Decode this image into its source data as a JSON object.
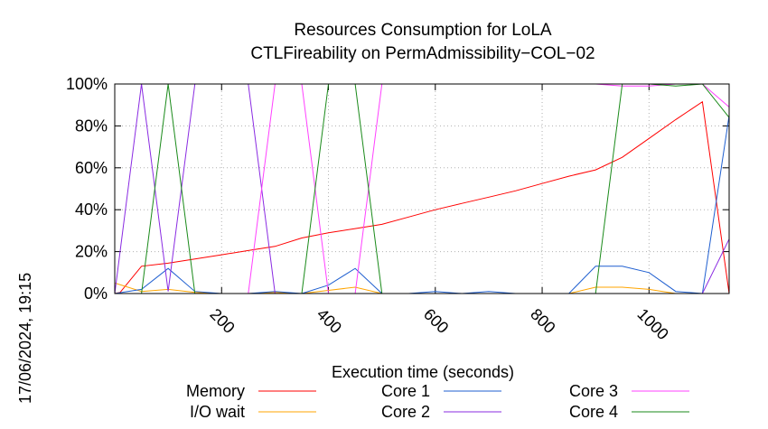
{
  "chart_data": {
    "type": "line",
    "title": "Resources Consumption for LoLA",
    "subtitle": "CTLFireability on PermAdmissibility−COL−02",
    "xlabel": "Execution time (seconds)",
    "ylabel": "",
    "side_label": "17/06/2024, 19:15",
    "xlim": [
      0,
      1150
    ],
    "ylim": [
      0,
      100
    ],
    "x_ticks": [
      200,
      400,
      600,
      800,
      1000
    ],
    "x_tick_labels": [
      "200",
      "400",
      "600",
      "800",
      "1000"
    ],
    "y_ticks": [
      0,
      20,
      40,
      60,
      80,
      100
    ],
    "y_tick_labels": [
      "0%",
      "20%",
      "40%",
      "60%",
      "80%",
      "100%"
    ],
    "grid": true,
    "legend_position": "bottom",
    "series": [
      {
        "name": "Memory",
        "color": "#ff0000",
        "x": [
          0,
          10,
          50,
          100,
          150,
          200,
          250,
          300,
          350,
          400,
          450,
          500,
          550,
          600,
          650,
          700,
          750,
          800,
          850,
          900,
          950,
          1000,
          1050,
          1100,
          1150
        ],
        "values": [
          0,
          0.5,
          13,
          14.5,
          16.5,
          18.5,
          20.5,
          22.5,
          26.5,
          29,
          31,
          33,
          36.5,
          40,
          43,
          46,
          49,
          52.5,
          56,
          59,
          65,
          74,
          83,
          91.5,
          0
        ]
      },
      {
        "name": "I/O wait",
        "color": "#ffa500",
        "x": [
          0,
          50,
          100,
          150,
          200,
          250,
          300,
          350,
          400,
          450,
          500,
          550,
          600,
          650,
          700,
          750,
          800,
          850,
          900,
          950,
          1000,
          1050,
          1100,
          1150
        ],
        "values": [
          5,
          1,
          2,
          0.5,
          0,
          0,
          0.5,
          0,
          1.5,
          3,
          0,
          0,
          0,
          0,
          0,
          0,
          0,
          0,
          3,
          3,
          2,
          0,
          0,
          0
        ]
      },
      {
        "name": "Core 1",
        "color": "#1f5fd0",
        "x": [
          0,
          50,
          100,
          150,
          200,
          250,
          300,
          350,
          400,
          450,
          500,
          550,
          600,
          650,
          700,
          750,
          800,
          850,
          900,
          950,
          1000,
          1050,
          1100,
          1150
        ],
        "values": [
          0,
          2,
          12,
          1,
          0,
          0,
          1,
          0,
          4,
          12,
          0,
          0,
          1,
          0,
          1,
          0,
          0,
          0,
          13,
          13,
          10,
          1,
          0,
          85
        ]
      },
      {
        "name": "Core 2",
        "color": "#8a2be2",
        "x": [
          0,
          50,
          100,
          150,
          200,
          250,
          300,
          350,
          400,
          450,
          500,
          550,
          600,
          650,
          700,
          750,
          800,
          850,
          900,
          950,
          1000,
          1050,
          1100,
          1150
        ],
        "values": [
          0,
          100,
          1,
          100,
          100,
          100,
          0,
          0,
          0,
          0,
          0,
          0,
          0,
          0,
          0,
          0,
          0,
          0,
          0,
          0,
          0,
          0,
          0,
          26
        ]
      },
      {
        "name": "Core 3",
        "color": "#ff40ff",
        "x": [
          0,
          50,
          100,
          150,
          200,
          250,
          300,
          350,
          400,
          450,
          500,
          550,
          600,
          650,
          700,
          750,
          800,
          850,
          900,
          950,
          1000,
          1050,
          1100,
          1150
        ],
        "values": [
          0,
          0,
          0,
          0,
          0,
          0,
          100,
          100,
          0,
          0,
          100,
          100,
          100,
          100,
          100,
          100,
          100,
          100,
          100,
          99,
          99,
          100,
          100,
          89
        ]
      },
      {
        "name": "Core 4",
        "color": "#1a8a1a",
        "x": [
          0,
          50,
          100,
          150,
          200,
          250,
          300,
          350,
          400,
          450,
          500,
          550,
          600,
          650,
          700,
          750,
          800,
          850,
          900,
          950,
          1000,
          1050,
          1100,
          1150
        ],
        "values": [
          0,
          0,
          100,
          0,
          0,
          0,
          0,
          0,
          100,
          100,
          0,
          0,
          0,
          0,
          0,
          0,
          0,
          0,
          0,
          100,
          100,
          99,
          100,
          84
        ]
      }
    ]
  }
}
